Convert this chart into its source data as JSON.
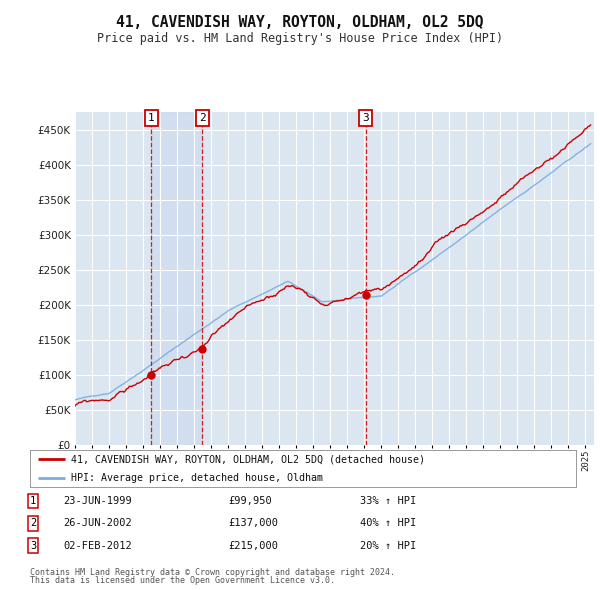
{
  "title": "41, CAVENDISH WAY, ROYTON, OLDHAM, OL2 5DQ",
  "subtitle": "Price paid vs. HM Land Registry's House Price Index (HPI)",
  "hpi_color": "#7aade0",
  "price_color": "#cc0000",
  "bg_color": "#dce6f1",
  "plot_bg": "#dce6f1",
  "grid_color": "#ffffff",
  "transactions": [
    {
      "num": 1,
      "date_str": "23-JUN-1999",
      "year": 1999.47,
      "price": 99950,
      "label": "33% ↑ HPI"
    },
    {
      "num": 2,
      "date_str": "26-JUN-2002",
      "year": 2002.48,
      "price": 137000,
      "label": "40% ↑ HPI"
    },
    {
      "num": 3,
      "date_str": "02-FEB-2012",
      "year": 2012.09,
      "price": 215000,
      "label": "20% ↑ HPI"
    }
  ],
  "legend_label_red": "41, CAVENDISH WAY, ROYTON, OLDHAM, OL2 5DQ (detached house)",
  "legend_label_blue": "HPI: Average price, detached house, Oldham",
  "footer1": "Contains HM Land Registry data © Crown copyright and database right 2024.",
  "footer2": "This data is licensed under the Open Government Licence v3.0.",
  "ylim": [
    0,
    475000
  ],
  "yticks": [
    0,
    50000,
    100000,
    150000,
    200000,
    250000,
    300000,
    350000,
    400000,
    450000
  ],
  "xlim_start": 1995.0,
  "xlim_end": 2025.5
}
